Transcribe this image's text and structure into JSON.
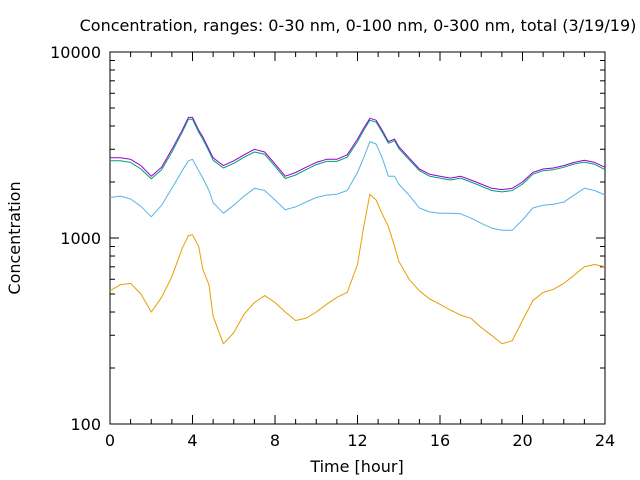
{
  "chart_data": {
    "type": "line",
    "title": "Concentration, ranges: 0-30 nm, 0-100 nm, 0-300 nm, total (3/19/19)",
    "xlabel": "Time [hour]",
    "ylabel": "Concentration",
    "xlim": [
      0,
      24
    ],
    "ylim": [
      100,
      10000
    ],
    "yscale": "log",
    "grid": false,
    "x_ticks": [
      0,
      4,
      8,
      12,
      16,
      20,
      24
    ],
    "x_tick_labels": [
      "0",
      "4",
      "8",
      "12",
      "16",
      "20",
      "24"
    ],
    "y_ticks": [
      100,
      1000,
      10000
    ],
    "y_tick_labels": [
      "100",
      "1000",
      "10000"
    ],
    "x": [
      0,
      0.5,
      1,
      1.5,
      2,
      2.5,
      3,
      3.5,
      3.8,
      4,
      4.3,
      4.5,
      4.8,
      5,
      5.5,
      6,
      6.5,
      7,
      7.5,
      8,
      8.5,
      9,
      9.5,
      10,
      10.5,
      11,
      11.5,
      12,
      12.3,
      12.6,
      12.9,
      13.2,
      13.5,
      13.8,
      14,
      14.5,
      15,
      15.5,
      16,
      16.5,
      17,
      17.5,
      18,
      18.5,
      19,
      19.5,
      20,
      20.5,
      21,
      21.5,
      22,
      22.5,
      23,
      23.5,
      24
    ],
    "series": [
      {
        "color": "#9400d3",
        "values": [
          2700,
          2700,
          2650,
          2450,
          2150,
          2400,
          3000,
          3800,
          4450,
          4450,
          3800,
          3500,
          3000,
          2700,
          2450,
          2600,
          2800,
          3000,
          2900,
          2500,
          2150,
          2250,
          2400,
          2550,
          2650,
          2650,
          2800,
          3400,
          3900,
          4400,
          4300,
          3800,
          3300,
          3400,
          3100,
          2700,
          2350,
          2200,
          2150,
          2100,
          2150,
          2050,
          1950,
          1850,
          1820,
          1850,
          2000,
          2250,
          2350,
          2380,
          2450,
          2550,
          2620,
          2550,
          2400
        ]
      },
      {
        "color": "#009e73",
        "values": [
          2600,
          2600,
          2550,
          2350,
          2080,
          2330,
          2900,
          3700,
          4350,
          4350,
          3700,
          3400,
          2920,
          2620,
          2380,
          2520,
          2720,
          2900,
          2820,
          2430,
          2090,
          2180,
          2330,
          2480,
          2580,
          2580,
          2720,
          3300,
          3800,
          4300,
          4200,
          3700,
          3230,
          3330,
          3030,
          2640,
          2300,
          2150,
          2100,
          2050,
          2100,
          2000,
          1900,
          1800,
          1770,
          1800,
          1950,
          2200,
          2300,
          2330,
          2400,
          2500,
          2560,
          2490,
          2330
        ]
      },
      {
        "color": "#56b4e9",
        "values": [
          1650,
          1680,
          1620,
          1480,
          1300,
          1500,
          1850,
          2300,
          2600,
          2650,
          2300,
          2100,
          1800,
          1550,
          1360,
          1500,
          1680,
          1850,
          1800,
          1600,
          1420,
          1470,
          1560,
          1650,
          1700,
          1720,
          1800,
          2250,
          2700,
          3300,
          3200,
          2700,
          2150,
          2150,
          1950,
          1700,
          1450,
          1380,
          1360,
          1360,
          1350,
          1280,
          1200,
          1130,
          1100,
          1100,
          1250,
          1450,
          1500,
          1520,
          1560,
          1700,
          1850,
          1800,
          1700
        ]
      },
      {
        "color": "#e69f00",
        "values": [
          520,
          560,
          570,
          500,
          400,
          480,
          620,
          880,
          1030,
          1040,
          900,
          680,
          560,
          380,
          270,
          310,
          390,
          450,
          490,
          450,
          400,
          360,
          370,
          400,
          440,
          480,
          510,
          720,
          1150,
          1720,
          1600,
          1350,
          1150,
          900,
          750,
          600,
          520,
          470,
          440,
          410,
          385,
          370,
          330,
          300,
          270,
          280,
          360,
          460,
          510,
          530,
          570,
          630,
          700,
          720,
          700
        ]
      }
    ]
  }
}
